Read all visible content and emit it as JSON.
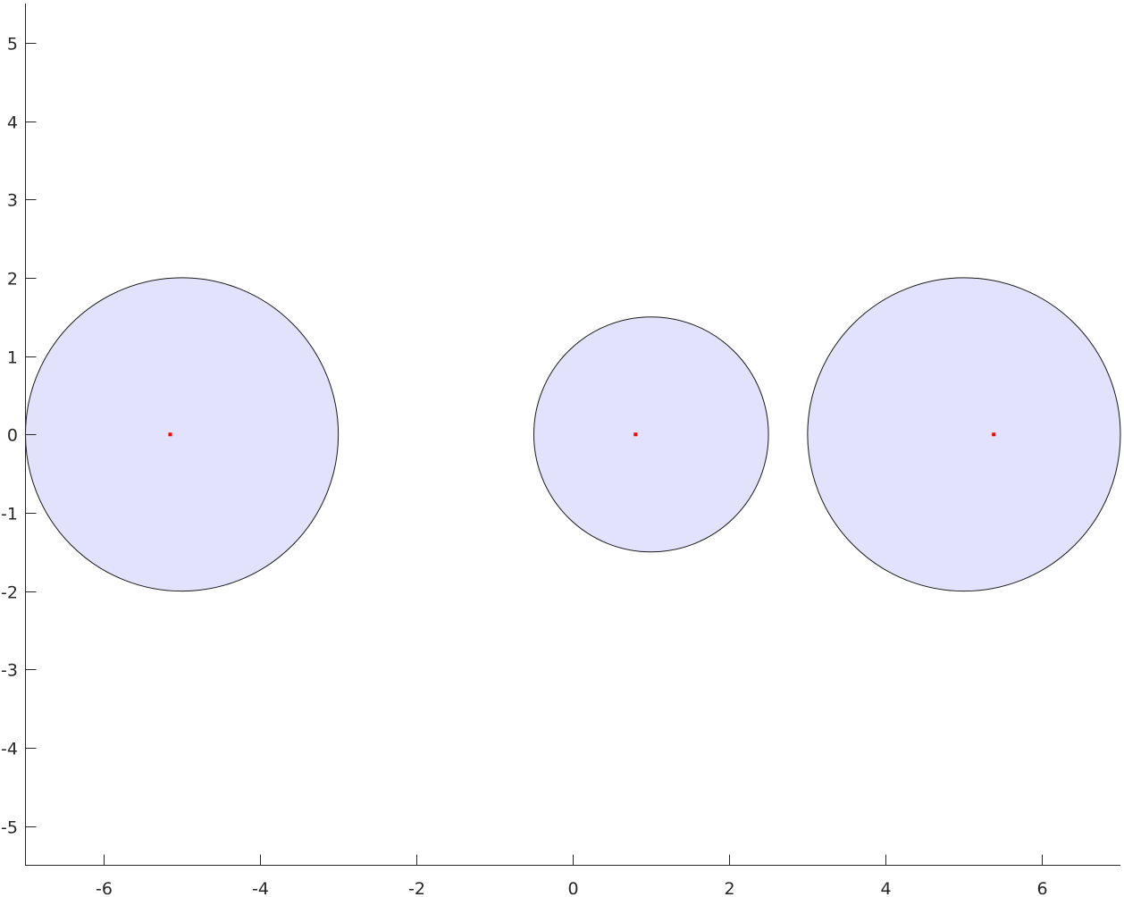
{
  "chart_data": {
    "type": "scatter",
    "title": "",
    "xlabel": "",
    "ylabel": "",
    "xlim": [
      -7,
      7
    ],
    "ylim": [
      -5.5,
      5.5
    ],
    "xticks": [
      -6,
      -4,
      -2,
      0,
      2,
      4,
      6
    ],
    "yticks": [
      -5,
      -4,
      -3,
      -2,
      -1,
      0,
      1,
      2,
      3,
      4,
      5
    ],
    "grid": false,
    "circles": [
      {
        "cx": -5,
        "cy": 0,
        "r": 2
      },
      {
        "cx": 1,
        "cy": 0,
        "r": 1.5
      },
      {
        "cx": 5,
        "cy": 0,
        "r": 2
      }
    ],
    "points": [
      {
        "x": -5.15,
        "y": 0
      },
      {
        "x": 0.8,
        "y": 0
      },
      {
        "x": 5.38,
        "y": 0
      }
    ],
    "colors": {
      "circle_fill": "#e2e2fc",
      "circle_edge": "#1a1a1a",
      "point": "#ff0000",
      "axis": "#262626"
    }
  }
}
